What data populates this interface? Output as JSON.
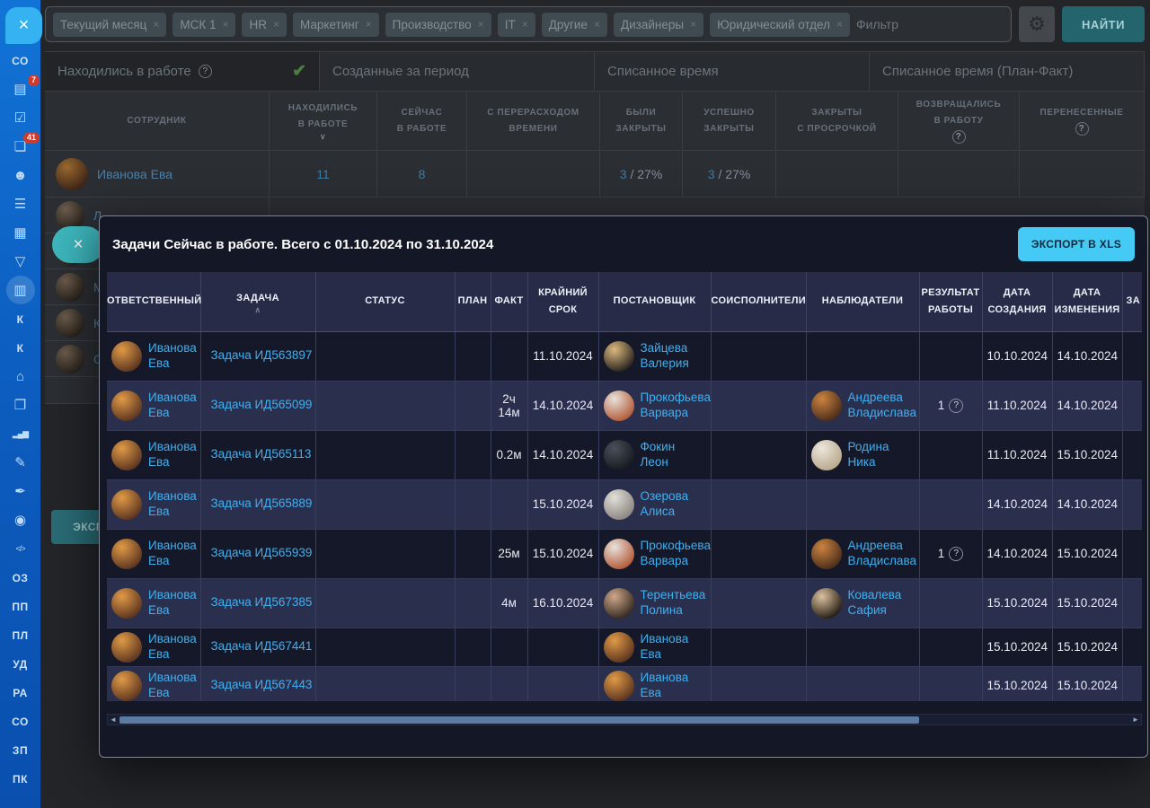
{
  "sidebar": {
    "close_icon": "×",
    "items": [
      {
        "id": "co-top",
        "type": "text",
        "label": "СО"
      },
      {
        "id": "news",
        "type": "icon",
        "icon": "news-icon",
        "badge": "7"
      },
      {
        "id": "tasks",
        "type": "icon",
        "icon": "tasks-icon"
      },
      {
        "id": "chat",
        "type": "icon",
        "icon": "chat-icon",
        "badge": "41"
      },
      {
        "id": "people",
        "type": "icon",
        "icon": "people-icon"
      },
      {
        "id": "drive",
        "type": "icon",
        "icon": "drive-icon"
      },
      {
        "id": "calendar",
        "type": "icon",
        "icon": "calendar-icon"
      },
      {
        "id": "funnel",
        "type": "icon",
        "icon": "funnel-icon"
      },
      {
        "id": "contacts",
        "type": "icon",
        "icon": "contact-card-icon",
        "active": true
      },
      {
        "id": "k-1",
        "type": "text",
        "label": "К"
      },
      {
        "id": "k-2",
        "type": "text",
        "label": "К"
      },
      {
        "id": "home",
        "type": "icon",
        "icon": "home-icon"
      },
      {
        "id": "document",
        "type": "icon",
        "icon": "document-icon"
      },
      {
        "id": "chart",
        "type": "icon",
        "icon": "bar-chart-icon"
      },
      {
        "id": "doc-edit",
        "type": "icon",
        "icon": "doc-edit-icon"
      },
      {
        "id": "pen",
        "type": "icon",
        "icon": "pen-icon"
      },
      {
        "id": "robot",
        "type": "icon",
        "icon": "robot-icon"
      },
      {
        "id": "code",
        "type": "icon",
        "icon": "code-icon"
      },
      {
        "id": "oz",
        "type": "text",
        "label": "ОЗ"
      },
      {
        "id": "pp",
        "type": "text",
        "label": "ПП"
      },
      {
        "id": "pl",
        "type": "text",
        "label": "ПЛ"
      },
      {
        "id": "ud",
        "type": "text",
        "label": "УД"
      },
      {
        "id": "ra",
        "type": "text",
        "label": "РА"
      },
      {
        "id": "co-2",
        "type": "text",
        "label": "СО"
      },
      {
        "id": "zp",
        "type": "text",
        "label": "ЗП"
      },
      {
        "id": "pk",
        "type": "text",
        "label": "ПК"
      }
    ]
  },
  "filter_bar": {
    "tags": [
      "Текущий месяц",
      "МСК 1",
      "HR",
      "Маркетинг",
      "Производство",
      "IT",
      "Другие",
      "Дизайнеры",
      "Юридический отдел"
    ],
    "remove_icon": "×",
    "placeholder": "Фильтр",
    "gear_icon": "gear-icon",
    "search_label": "НАЙТИ"
  },
  "tabs": [
    {
      "label": "Находились в работе",
      "help": true,
      "checked": true,
      "active": true
    },
    {
      "label": "Созданные за период"
    },
    {
      "label": "Списанное время"
    },
    {
      "label": "Списанное время (План-Факт)"
    }
  ],
  "background_table": {
    "columns": [
      {
        "lines": [
          "СОТРУДНИК"
        ]
      },
      {
        "lines": [
          "НАХОДИЛИСЬ",
          "В РАБОТЕ"
        ],
        "sort": "down"
      },
      {
        "lines": [
          "СЕЙЧАС",
          "В РАБОТЕ"
        ]
      },
      {
        "lines": [
          "С ПЕРЕРАСХОДОМ",
          "ВРЕМЕНИ"
        ]
      },
      {
        "lines": [
          "БЫЛИ",
          "ЗАКРЫТЫ"
        ]
      },
      {
        "lines": [
          "УСПЕШНО",
          "ЗАКРЫТЫ"
        ]
      },
      {
        "lines": [
          "ЗАКРЫТЫ",
          "С ПРОСРОЧКОЙ"
        ]
      },
      {
        "lines": [
          "ВОЗВРАЩАЛИСЬ",
          "В РАБОТУ"
        ],
        "help": true
      },
      {
        "lines": [
          "ПЕРЕНЕСЕННЫЕ"
        ],
        "help": true
      }
    ],
    "first_row": {
      "employee": "Иванова Ева",
      "values": [
        {
          "v": "11"
        },
        {
          "v": "8"
        },
        {},
        {
          "v": "3",
          "s": "/ 27%"
        },
        {
          "v": "3",
          "s": "/ 27%"
        },
        {},
        {},
        {}
      ]
    },
    "partial_rows": [
      "Л",
      "К",
      "М",
      "К",
      "С"
    ],
    "export_label": "ЭКСПОРТ В XLS"
  },
  "modal": {
    "close_icon": "×",
    "title": "Задачи Сейчас в работе. Всего с 01.10.2024 по 31.10.2024",
    "export_label": "ЭКСПОРТ В XLS",
    "accent_color": "#45c9f5",
    "link_color": "#3fb0f0",
    "columns": [
      {
        "lines": [
          "ОТВЕТСТВЕННЫЙ"
        ]
      },
      {
        "lines": [
          "ЗАДАЧА"
        ],
        "sort": "up"
      },
      {
        "lines": [
          "СТАТУС"
        ]
      },
      {
        "lines": [
          "ПЛАН"
        ]
      },
      {
        "lines": [
          "ФАКТ"
        ]
      },
      {
        "lines": [
          "КРАЙНИЙ",
          "СРОК"
        ]
      },
      {
        "lines": [
          "ПОСТАНОВЩИК"
        ]
      },
      {
        "lines": [
          "СОИСПОЛНИТЕЛИ"
        ]
      },
      {
        "lines": [
          "НАБЛЮДАТЕЛИ"
        ]
      },
      {
        "lines": [
          "РЕЗУЛЬТАТ",
          "РАБОТЫ"
        ]
      },
      {
        "lines": [
          "ДАТА",
          "СОЗДАНИЯ"
        ]
      },
      {
        "lines": [
          "ДАТА",
          "ИЗМЕНЕНИЯ"
        ]
      },
      {
        "lines": [
          "",
          "ЗА"
        ],
        "cut": true
      }
    ],
    "rows": [
      {
        "responsible": "Иванова Ева",
        "task": "Задача ИД563897",
        "status": "",
        "plan": "",
        "fact": "",
        "deadline": "11.10.2024",
        "setter": "Зайцева Валерия",
        "coexecutors": "",
        "watcher": "",
        "result": "",
        "created": "10.10.2024",
        "modified": "14.10.2024"
      },
      {
        "responsible": "Иванова Ева",
        "task": "Задача ИД565099",
        "status": "",
        "plan": "",
        "fact": "2ч 14м",
        "deadline": "14.10.2024",
        "setter": "Прокофьева Варвара",
        "coexecutors": "",
        "watcher": "Андреева Владислава",
        "result": "1",
        "created": "11.10.2024",
        "modified": "14.10.2024"
      },
      {
        "responsible": "Иванова Ева",
        "task": "Задача ИД565113",
        "status": "",
        "plan": "",
        "fact": "0.2м",
        "deadline": "14.10.2024",
        "setter": "Фокин Леон",
        "coexecutors": "",
        "watcher": "Родина Ника",
        "result": "",
        "created": "11.10.2024",
        "modified": "15.10.2024"
      },
      {
        "responsible": "Иванова Ева",
        "task": "Задача ИД565889",
        "status": "",
        "plan": "",
        "fact": "",
        "deadline": "15.10.2024",
        "setter": "Озерова Алиса",
        "coexecutors": "",
        "watcher": "",
        "result": "",
        "created": "14.10.2024",
        "modified": "14.10.2024"
      },
      {
        "responsible": "Иванова Ева",
        "task": "Задача ИД565939",
        "status": "",
        "plan": "",
        "fact": "25м",
        "deadline": "15.10.2024",
        "setter": "Прокофьева Варвара",
        "coexecutors": "",
        "watcher": "Андреева Владислава",
        "result": "1",
        "created": "14.10.2024",
        "modified": "15.10.2024"
      },
      {
        "responsible": "Иванова Ева",
        "task": "Задача ИД567385",
        "status": "",
        "plan": "",
        "fact": "4м",
        "deadline": "16.10.2024",
        "setter": "Терентьева Полина",
        "coexecutors": "",
        "watcher": "Ковалева Сафия",
        "result": "",
        "created": "15.10.2024",
        "modified": "15.10.2024"
      },
      {
        "responsible": "Иванова Ева",
        "task": "Задача ИД567441",
        "status": "",
        "plan": "",
        "fact": "",
        "deadline": "",
        "setter": "Иванова Ева",
        "coexecutors": "",
        "watcher": "",
        "result": "",
        "created": "15.10.2024",
        "modified": "15.10.2024",
        "compact": true
      },
      {
        "responsible": "Иванова Ева",
        "task": "Задача ИД567443",
        "status": "",
        "plan": "",
        "fact": "",
        "deadline": "",
        "setter": "Иванова Ева",
        "coexecutors": "",
        "watcher": "",
        "result": "",
        "created": "15.10.2024",
        "modified": "15.10.2024",
        "compact": true
      }
    ]
  }
}
